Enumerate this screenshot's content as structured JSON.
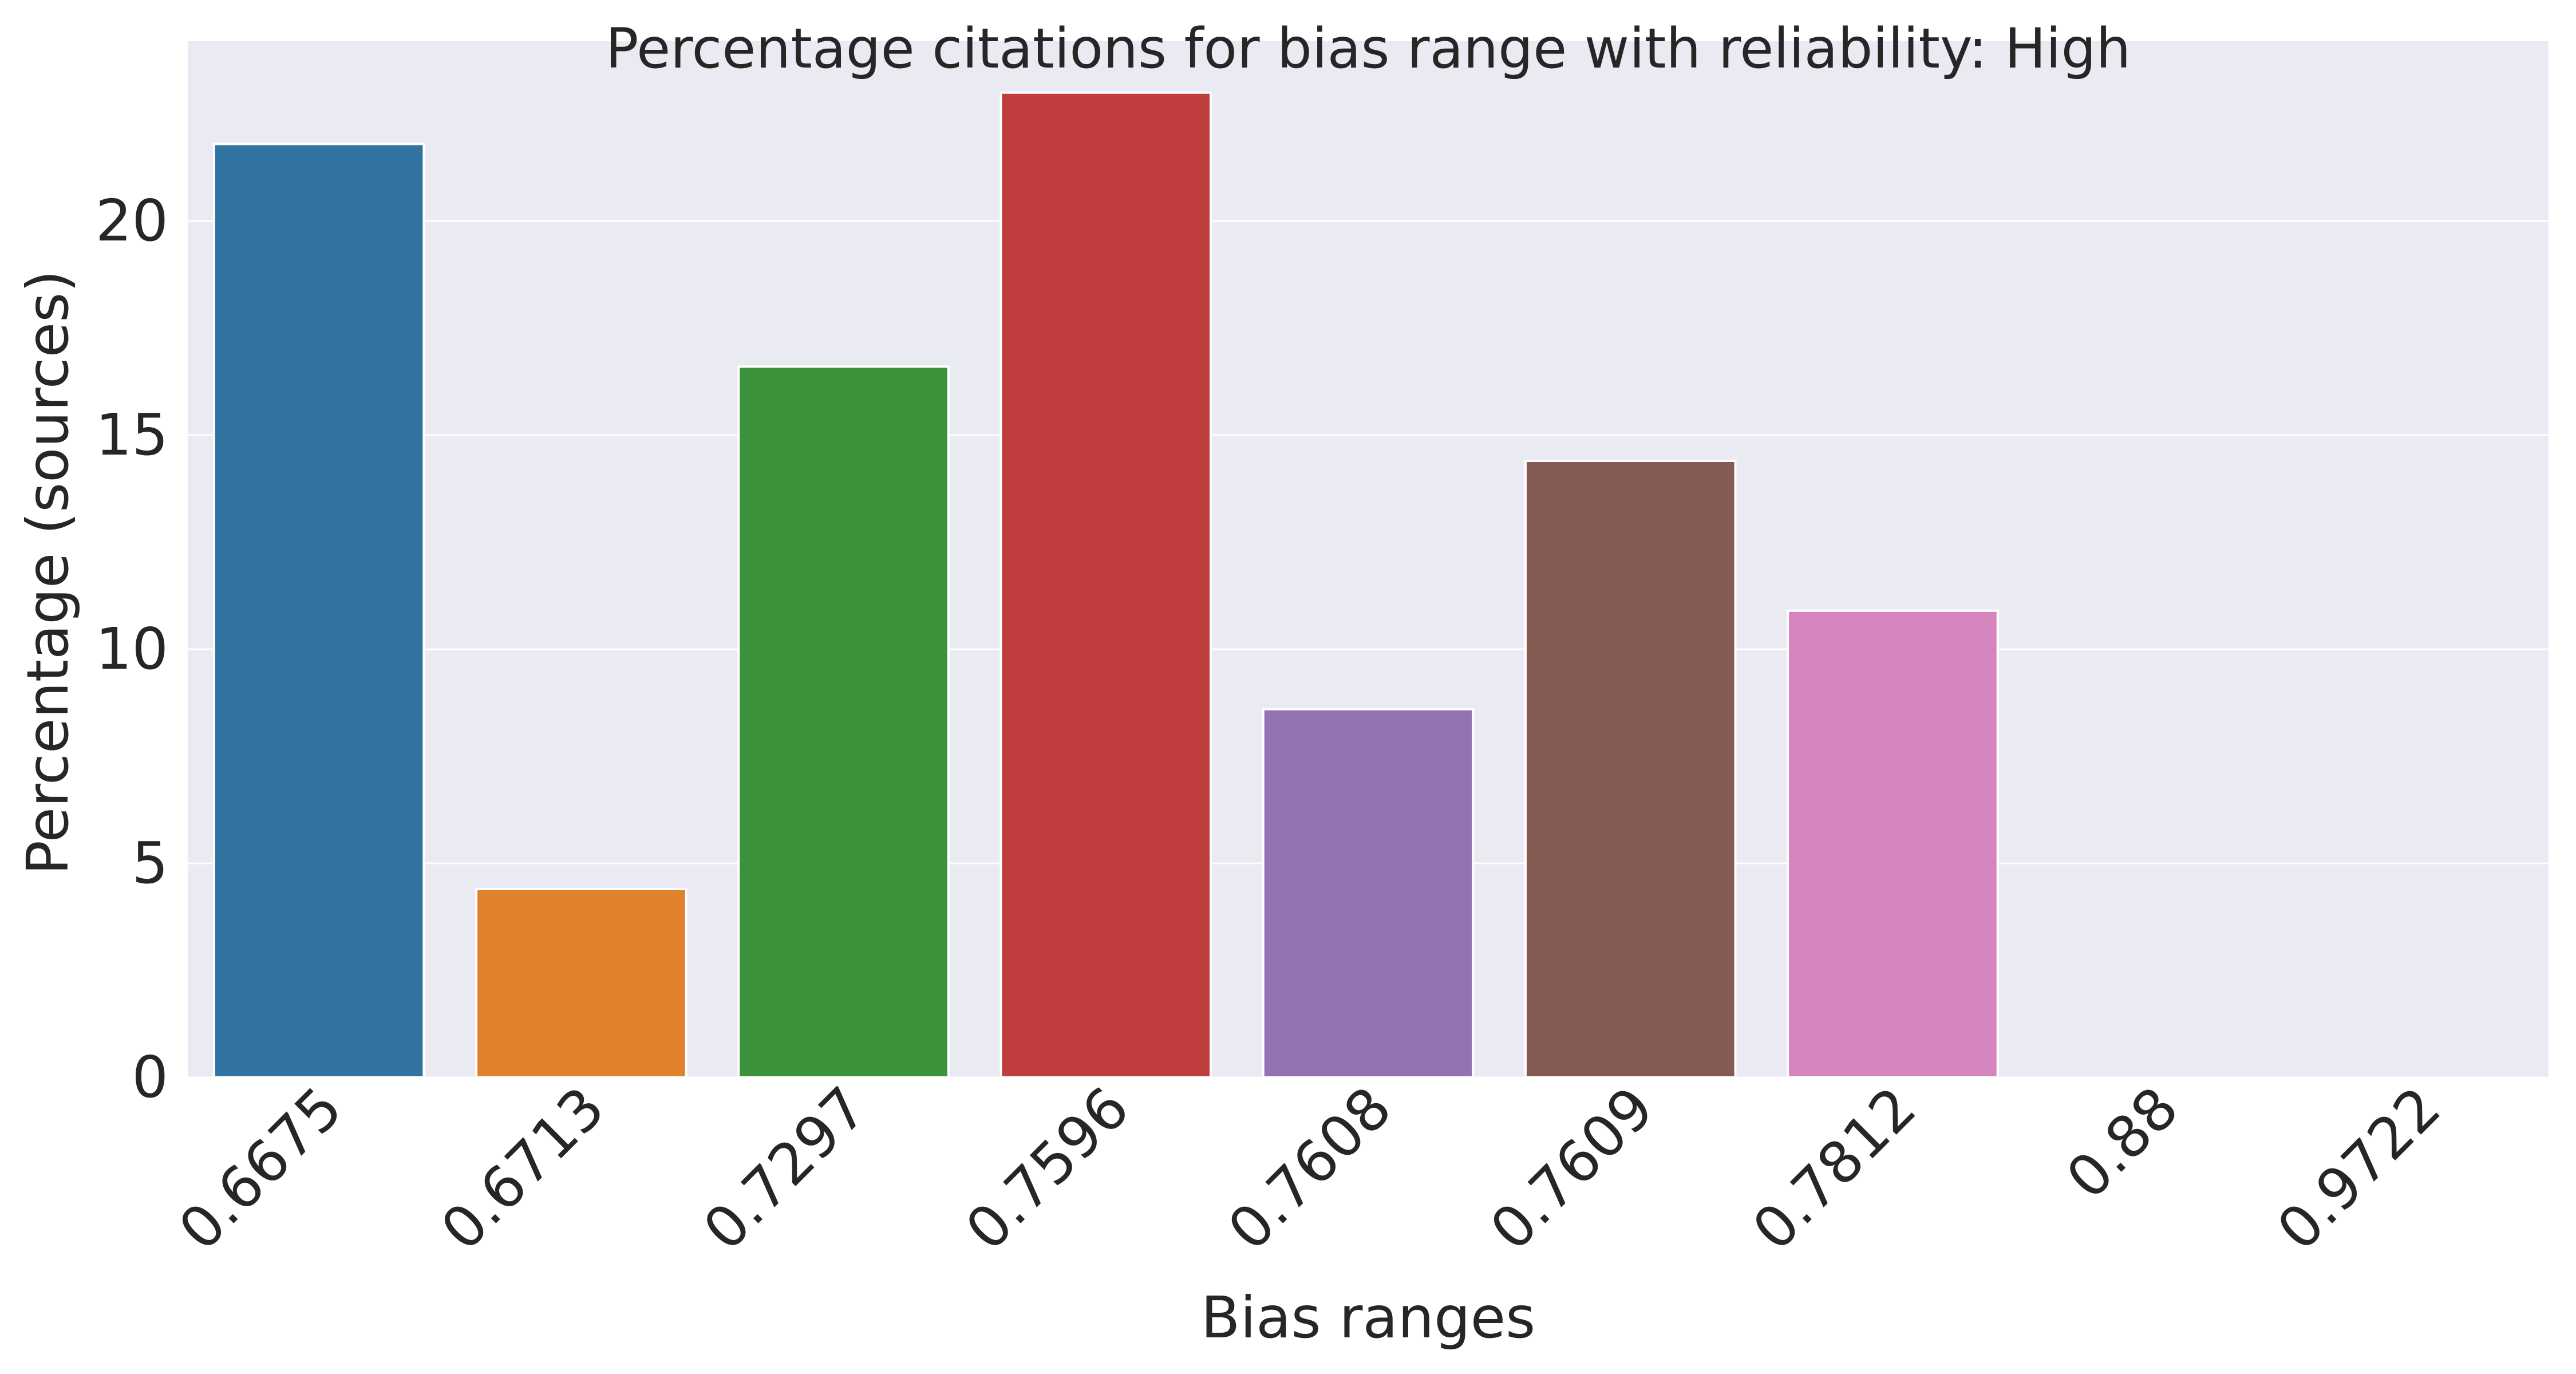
{
  "chart_data": {
    "type": "bar",
    "title": "Percentage citations for bias range with reliability: High",
    "xlabel": "Bias ranges",
    "ylabel": "Percentage (sources)",
    "categories": [
      "0.6675",
      "0.6713",
      "0.7297",
      "0.7596",
      "0.7608",
      "0.7609",
      "0.7812",
      "0.88",
      "0.9722"
    ],
    "values": [
      21.8,
      4.4,
      16.6,
      23.0,
      8.6,
      14.4,
      10.9,
      0.0,
      0.0
    ],
    "colors": [
      "#3274a1",
      "#e1812c",
      "#3a923a",
      "#c03d3e",
      "#9372b2",
      "#845b53",
      "#d684bd",
      "#7f7f7f",
      "#a9aa35"
    ],
    "ylim": [
      0,
      24.2
    ],
    "yticks": [
      0,
      5,
      10,
      15,
      20
    ],
    "grid": true,
    "background": "#eaeaf2",
    "grid_color": "#ffffff"
  }
}
